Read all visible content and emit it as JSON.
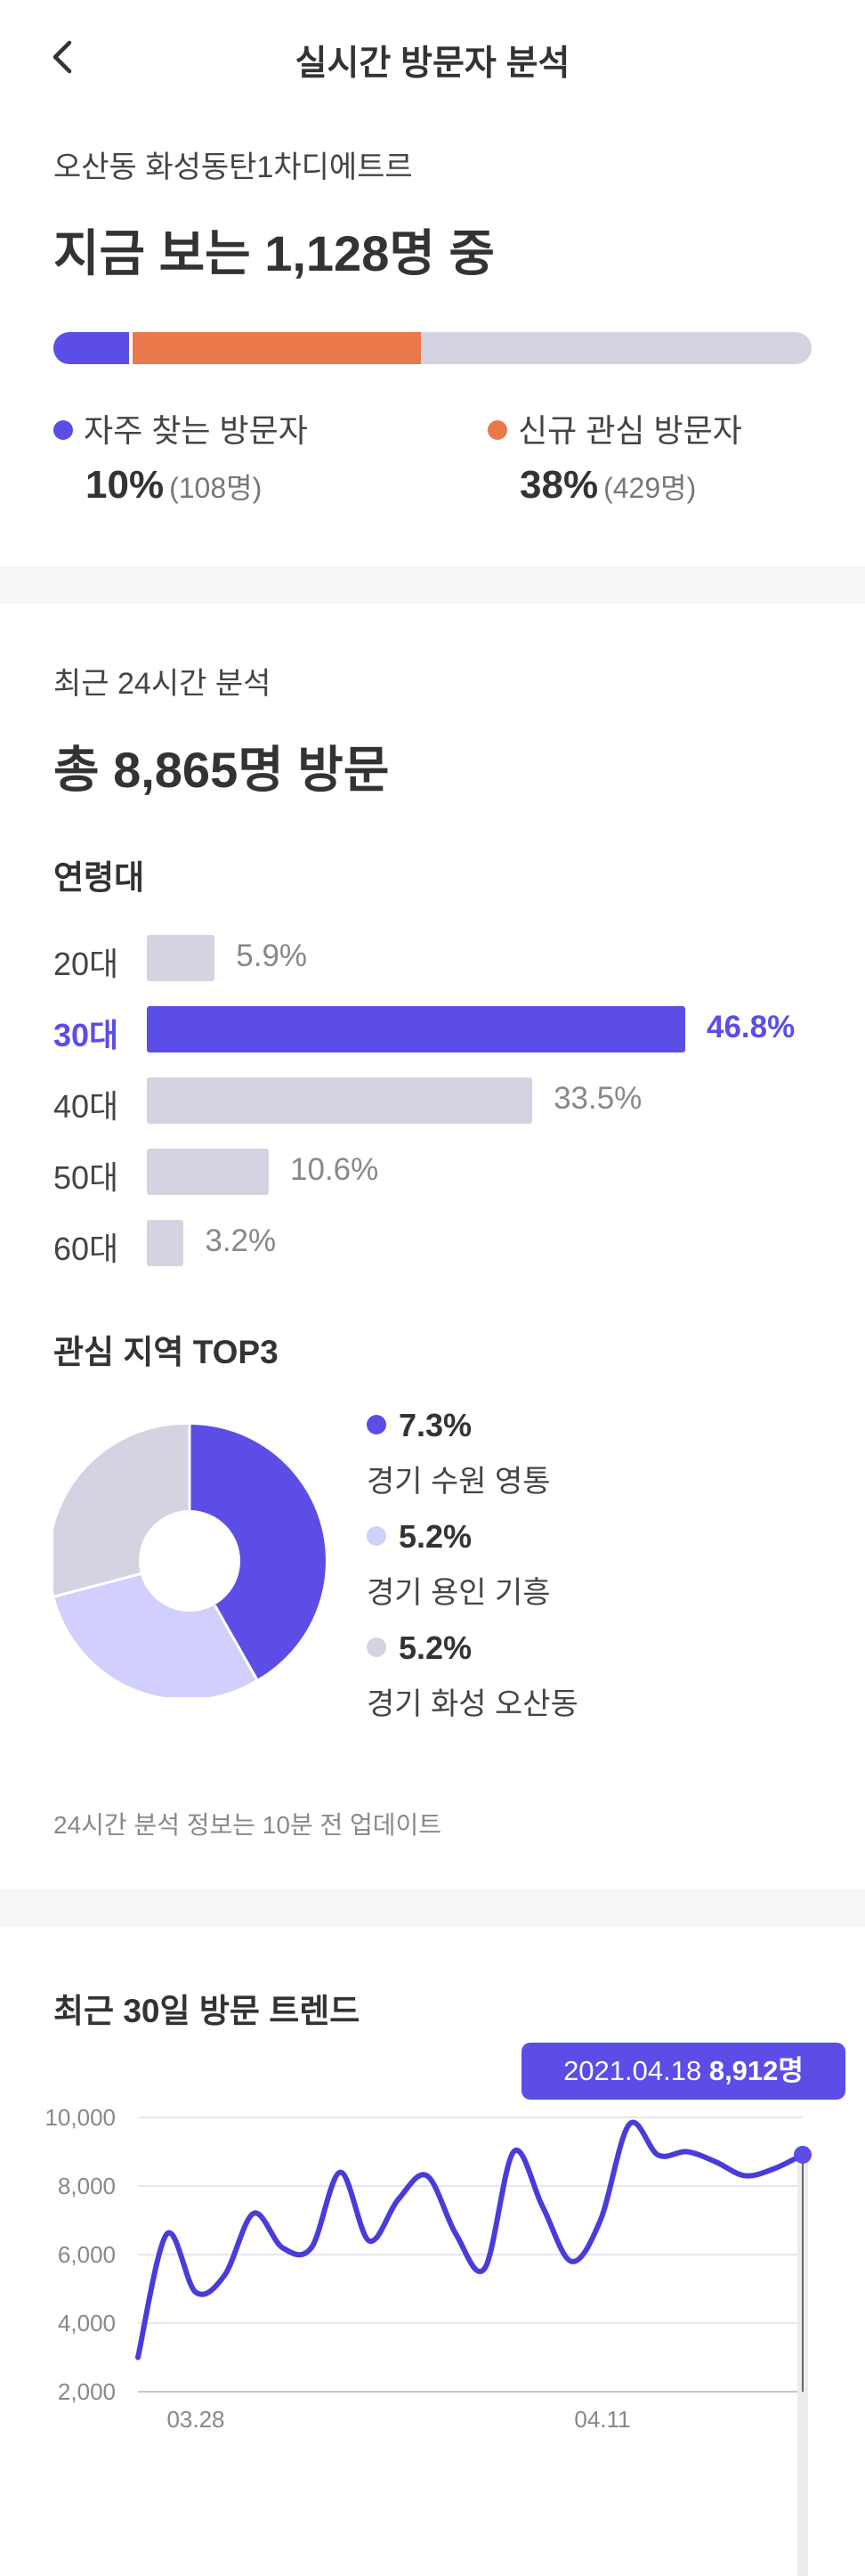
{
  "header": {
    "title": "실시간 방문자 분석"
  },
  "realtime": {
    "place": "오산동 화성동탄1차디에트르",
    "headline": "지금 보는 1,128명 중",
    "frequent": {
      "label": "자주 찾는 방문자",
      "pct": "10%",
      "count": "(108명)",
      "share": 0.1,
      "color": "#5b4de6"
    },
    "new_interest": {
      "label": "신규 관심 방문자",
      "pct": "38%",
      "count": "(429명)",
      "share": 0.38,
      "color": "#e9784a"
    }
  },
  "daily": {
    "label": "최근 24시간 분석",
    "total": "총 8,865명 방문",
    "age_title": "연령대",
    "ages": [
      {
        "label": "20대",
        "value": 5.9,
        "text": "5.9%"
      },
      {
        "label": "30대",
        "value": 46.8,
        "text": "46.8%",
        "highlight": true
      },
      {
        "label": "40대",
        "value": 33.5,
        "text": "33.5%"
      },
      {
        "label": "50대",
        "value": 10.6,
        "text": "10.6%"
      },
      {
        "label": "60대",
        "value": 3.2,
        "text": "3.2%"
      }
    ],
    "region_title": "관심 지역 TOP3",
    "regions": [
      {
        "pct": "7.3%",
        "name": "경기 수원 영통",
        "color": "#5b4de6"
      },
      {
        "pct": "5.2%",
        "name": "경기 용인 기흥",
        "color": "#d1cffb"
      },
      {
        "pct": "5.2%",
        "name": "경기 화성 오산동",
        "color": "#d4d3e2"
      }
    ],
    "update_note": "24시간 분석 정보는 10분 전 업데이트"
  },
  "chart_data": {
    "type": "line",
    "title": "최근 30일 방문 트렌드",
    "x_ticks": [
      "03.28",
      "04.11"
    ],
    "y_ticks": [
      "10,000",
      "8,000",
      "6,000",
      "4,000",
      "2,000"
    ],
    "ylim": [
      2000,
      10000
    ],
    "values": [
      3000,
      6600,
      4900,
      5400,
      7200,
      6200,
      6200,
      8400,
      6400,
      7600,
      8300,
      6600,
      5600,
      9000,
      7400,
      5800,
      7000,
      9800,
      8900,
      9000,
      8700,
      8300,
      8500,
      8912
    ],
    "tooltip": {
      "date": "2021.04.18",
      "value": "8,912명"
    },
    "color": "#4a3bdb"
  }
}
